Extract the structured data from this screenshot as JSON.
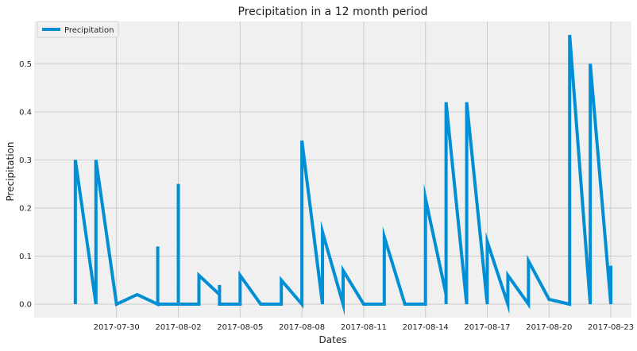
{
  "chart_data": {
    "type": "line",
    "title": "Precipitation in a 12 month period",
    "xlabel": "Dates",
    "ylabel": "Precipitation",
    "ylim": [
      -0.028,
      0.588
    ],
    "xlim": [
      "2017-07-26",
      "2017-08-24"
    ],
    "grid": true,
    "legend": {
      "placement": "top-left",
      "entries": [
        "Precipitation"
      ]
    },
    "series": [
      {
        "name": "Precipitation",
        "color": "#008fd5",
        "x": [
          "2017-07-28",
          "2017-07-28",
          "2017-07-28",
          "2017-07-29",
          "2017-07-29",
          "2017-07-29",
          "2017-07-30",
          "2017-07-31",
          "2017-08-01",
          "2017-08-01",
          "2017-08-01",
          "2017-08-02",
          "2017-08-02",
          "2017-08-02",
          "2017-08-03",
          "2017-08-03",
          "2017-08-03",
          "2017-08-04",
          "2017-08-04",
          "2017-08-04",
          "2017-08-05",
          "2017-08-05",
          "2017-08-06",
          "2017-08-07",
          "2017-08-07",
          "2017-08-08",
          "2017-08-08",
          "2017-08-09",
          "2017-08-09",
          "2017-08-10",
          "2017-08-10",
          "2017-08-11",
          "2017-08-12",
          "2017-08-12",
          "2017-08-13",
          "2017-08-14",
          "2017-08-14",
          "2017-08-15",
          "2017-08-15",
          "2017-08-15",
          "2017-08-16",
          "2017-08-16",
          "2017-08-17",
          "2017-08-17",
          "2017-08-18",
          "2017-08-18",
          "2017-08-19",
          "2017-08-19",
          "2017-08-20",
          "2017-08-21",
          "2017-08-21",
          "2017-08-22",
          "2017-08-22",
          "2017-08-23",
          "2017-08-23"
        ],
        "y": [
          0.06,
          0.0,
          0.3,
          0.0,
          0.0,
          0.3,
          0.0,
          0.02,
          0.0,
          0.12,
          0.0,
          0.0,
          0.25,
          0.0,
          0.0,
          0.06,
          0.06,
          0.02,
          0.04,
          0.0,
          0.0,
          0.06,
          0.0,
          0.0,
          0.05,
          0.0,
          0.34,
          0.0,
          0.15,
          0.0,
          0.07,
          0.0,
          0.0,
          0.14,
          0.0,
          0.0,
          0.22,
          0.02,
          0.0,
          0.42,
          0.0,
          0.42,
          0.0,
          0.13,
          0.0,
          0.06,
          0.0,
          0.09,
          0.01,
          0.0,
          0.56,
          0.0,
          0.5,
          0.0,
          0.08
        ]
      }
    ],
    "x_ticks": [
      "2017-07-30",
      "2017-08-02",
      "2017-08-05",
      "2017-08-08",
      "2017-08-11",
      "2017-08-14",
      "2017-08-17",
      "2017-08-20",
      "2017-08-23"
    ],
    "y_ticks": [
      0.0,
      0.1,
      0.2,
      0.3,
      0.4,
      0.5
    ],
    "y_tick_labels": [
      "0.0",
      "0.1",
      "0.2",
      "0.3",
      "0.4",
      "0.5"
    ]
  },
  "colors": {
    "background": "#ffffff",
    "plot_area": "#f0f0f0",
    "grid": "#cbcbcb",
    "series": "#008fd5",
    "text": "#222222"
  }
}
